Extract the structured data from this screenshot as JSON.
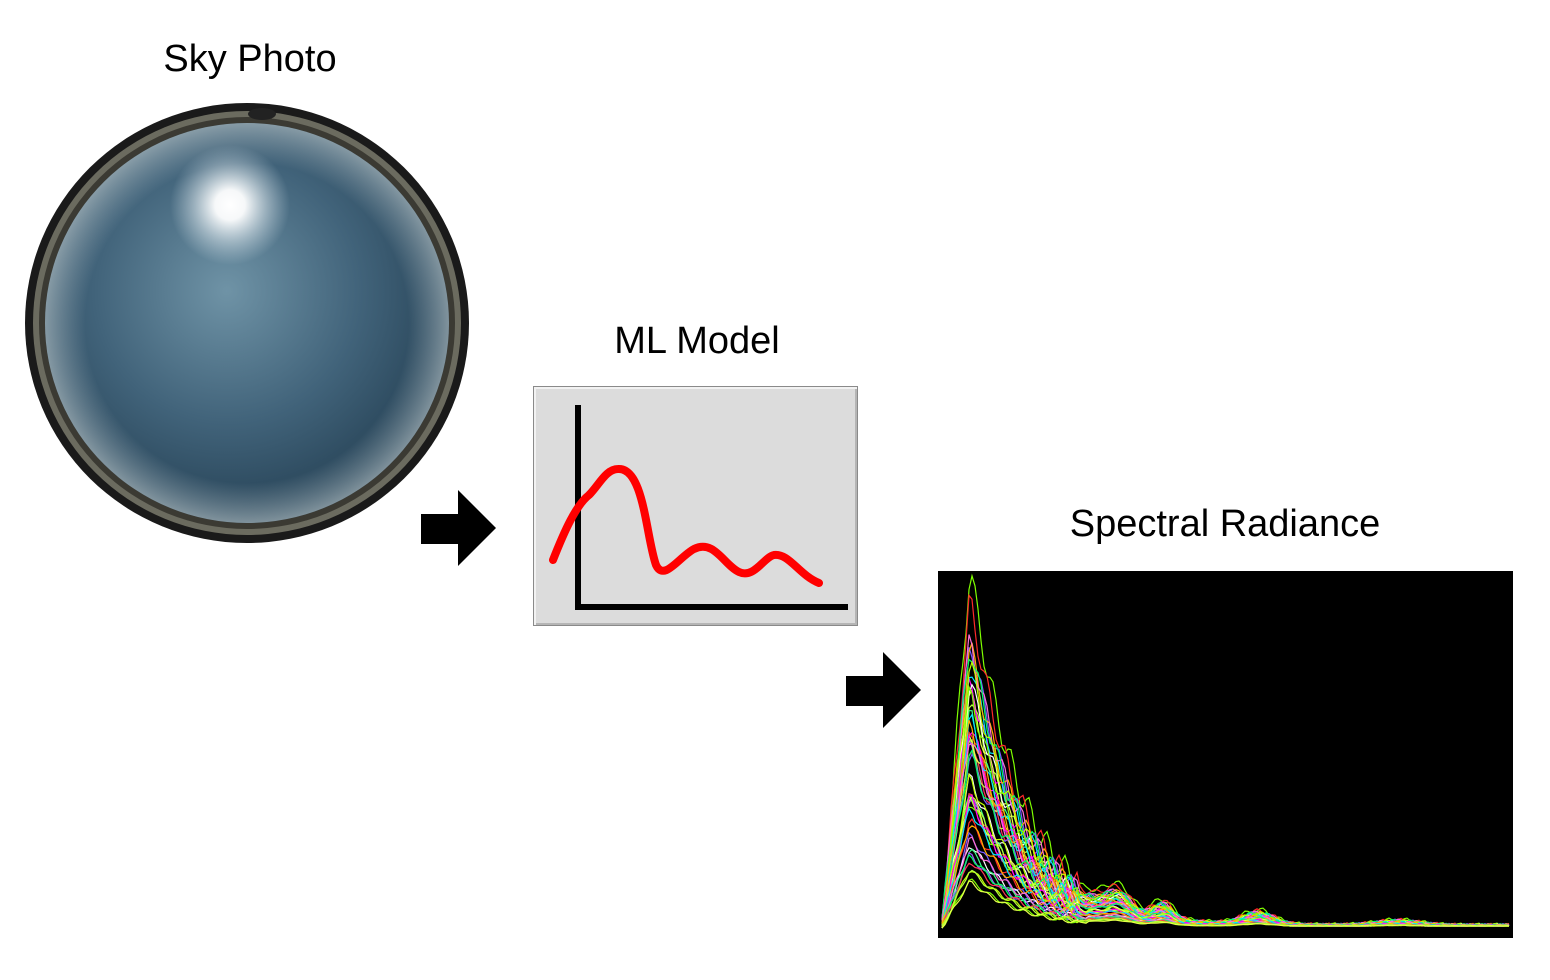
{
  "labels": {
    "sky_photo": "Sky Photo",
    "ml_model": "ML Model",
    "spectral_radiance": "Spectral Radiance"
  },
  "colors": {
    "background": "#ffffff",
    "arrow": "#000000",
    "curve": "#ff0000",
    "ml_box_fill": "#dcdcdc",
    "spectral_background": "#000000",
    "sky_center": "#6a8fa3",
    "sky_edge": "#2e4e63"
  },
  "icons": {
    "arrow": "right-arrow-icon",
    "ml": "line-chart-icon"
  }
}
